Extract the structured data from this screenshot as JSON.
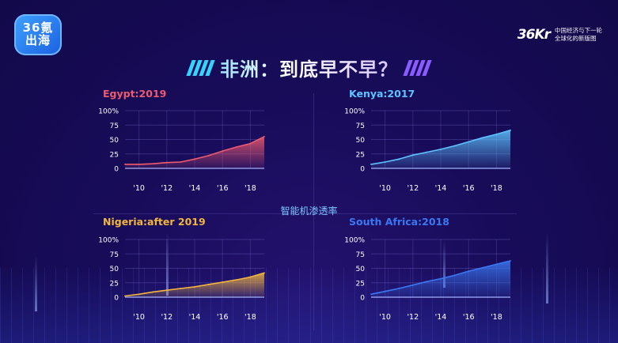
{
  "logo": {
    "line1": "36氪",
    "line2": "出海"
  },
  "brand": {
    "mark": "36Kr",
    "tagline1": "中国经济与下一轮",
    "tagline2": "全球化的新版图"
  },
  "title": "非洲：到底早不早？",
  "center_label": "智能机渗透率",
  "colors": {
    "egypt": "#ef5a6f",
    "kenya": "#5ec3ff",
    "nigeria": "#f2b63e",
    "south_africa": "#3a78f2",
    "stripe_left": "#35d4ff",
    "stripe_right": "#8a5bff"
  },
  "chart_data": [
    {
      "type": "area",
      "title": "Egypt:2019",
      "x": [
        2009,
        2010,
        2011,
        2012,
        2013,
        2014,
        2015,
        2016,
        2017,
        2018,
        2019
      ],
      "values": [
        7,
        7,
        8,
        10,
        11,
        16,
        22,
        30,
        37,
        43,
        55
      ],
      "ylim": [
        0,
        100
      ],
      "yticks": [
        "100%",
        "75",
        "50",
        "25",
        "0"
      ],
      "xticks": [
        "'10",
        "'12",
        "'14",
        "'16",
        "'18"
      ]
    },
    {
      "type": "area",
      "title": "Kenya:2017",
      "x": [
        2009,
        2010,
        2011,
        2012,
        2013,
        2014,
        2015,
        2016,
        2017,
        2018,
        2019
      ],
      "values": [
        7,
        11,
        16,
        23,
        28,
        33,
        39,
        46,
        53,
        59,
        66
      ],
      "ylim": [
        0,
        100
      ],
      "yticks": [
        "100%",
        "75",
        "50",
        "25",
        "0"
      ],
      "xticks": [
        "'10",
        "'12",
        "'14",
        "'16",
        "'18"
      ]
    },
    {
      "type": "area",
      "title": "Nigeria:after 2019",
      "x": [
        2009,
        2010,
        2011,
        2012,
        2013,
        2014,
        2015,
        2016,
        2017,
        2018,
        2019
      ],
      "values": [
        2,
        5,
        9,
        12,
        15,
        18,
        22,
        26,
        30,
        35,
        42
      ],
      "ylim": [
        0,
        100
      ],
      "yticks": [
        "100%",
        "75",
        "50",
        "25",
        "0"
      ],
      "xticks": [
        "'10",
        "'12",
        "'14",
        "'16",
        "'18"
      ]
    },
    {
      "type": "area",
      "title": "South Africa:2018",
      "x": [
        2009,
        2010,
        2011,
        2012,
        2013,
        2014,
        2015,
        2016,
        2017,
        2018,
        2019
      ],
      "values": [
        5,
        10,
        15,
        21,
        27,
        32,
        38,
        45,
        51,
        57,
        63
      ],
      "ylim": [
        0,
        100
      ],
      "yticks": [
        "100%",
        "75",
        "50",
        "25",
        "0"
      ],
      "xticks": [
        "'10",
        "'12",
        "'14",
        "'16",
        "'18"
      ]
    }
  ]
}
